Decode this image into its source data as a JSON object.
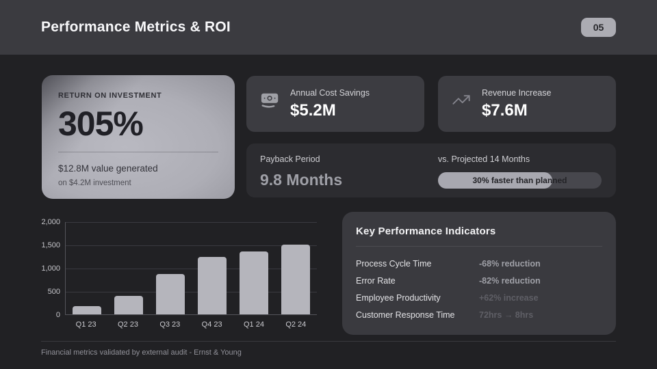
{
  "header": {
    "title": "Performance Metrics & ROI",
    "page_number": "05"
  },
  "roi_card": {
    "label": "RETURN ON INVESTMENT",
    "value": "305%",
    "line1": "$12.8M value generated",
    "line2": "on $4.2M investment"
  },
  "stat_cards": [
    {
      "icon": "banknote-icon",
      "label": "Annual Cost Savings",
      "value": "$5.2M"
    },
    {
      "icon": "trending-up-icon",
      "label": "Revenue Increase",
      "value": "$7.6M"
    }
  ],
  "payback": {
    "label": "Payback Period",
    "value": "9.8 Months",
    "projected_label": "vs. Projected 14 Months",
    "progress_text": "30% faster than planned",
    "progress_pct": 70
  },
  "chart_data": {
    "type": "bar",
    "categories": [
      "Q1 23",
      "Q2 23",
      "Q3 23",
      "Q4 23",
      "Q1 24",
      "Q2 24"
    ],
    "values": [
      175,
      400,
      875,
      1230,
      1360,
      1500
    ],
    "title": "",
    "xlabel": "",
    "ylabel": "",
    "ylim": [
      0,
      2000
    ],
    "yticks": [
      0,
      500,
      1000,
      1500,
      2000
    ],
    "ytick_labels": [
      "0",
      "500",
      "1,000",
      "1,500",
      "2,000"
    ],
    "grid": true,
    "legend": false,
    "bar_color": "#b5b5bc"
  },
  "kpi": {
    "title": "Key Performance Indicators",
    "rows": [
      {
        "label": "Process Cycle Time",
        "value": "-68% reduction",
        "muted": false
      },
      {
        "label": "Error Rate",
        "value": "-82% reduction",
        "muted": false
      },
      {
        "label": "Employee Productivity",
        "value": "+62% increase",
        "muted": true
      },
      {
        "label": "Customer Response Time",
        "value": "72hrs → 8hrs",
        "muted": true
      }
    ]
  },
  "footer": {
    "text": "Financial metrics validated by external audit - Ernst & Young"
  }
}
